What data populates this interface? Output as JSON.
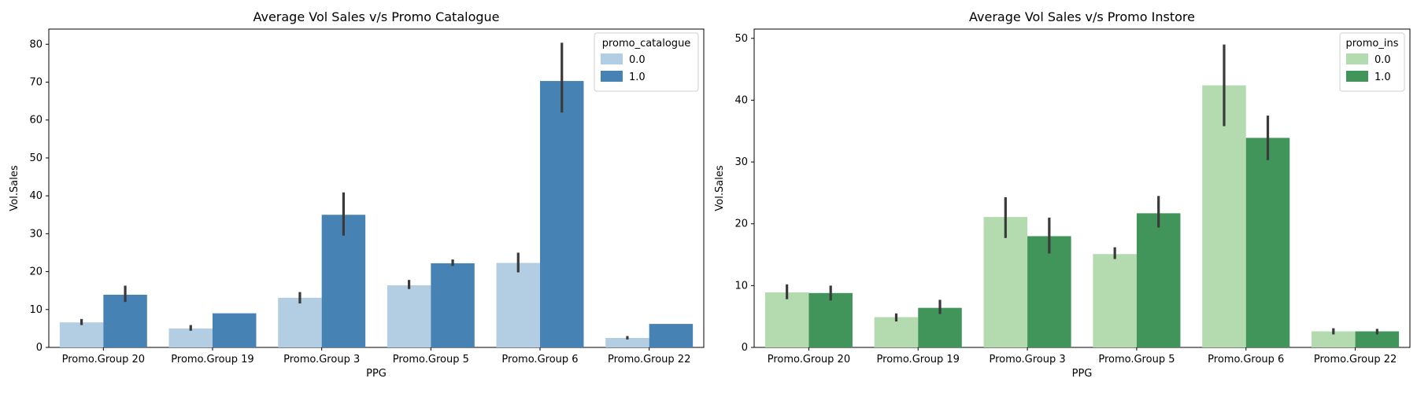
{
  "chart_data": [
    {
      "type": "bar",
      "title": "Average Vol Sales v/s Promo Catalogue",
      "xlabel": "PPG",
      "ylabel": "Vol.Sales",
      "ylim": [
        0,
        84
      ],
      "yticks": [
        0,
        10,
        20,
        30,
        40,
        50,
        60,
        70,
        80
      ],
      "categories": [
        "Promo.Group 20",
        "Promo.Group 19",
        "Promo.Group 3",
        "Promo.Group 5",
        "Promo.Group 6",
        "Promo.Group 22"
      ],
      "legend": {
        "title": "promo_catalogue",
        "placement": "top-right"
      },
      "series": [
        {
          "name": "0.0",
          "color": "#b3cee3",
          "values": [
            6.6,
            5.0,
            13.1,
            16.4,
            22.3,
            2.5
          ],
          "error": [
            [
              5.9,
              7.5
            ],
            [
              4.4,
              5.9
            ],
            [
              11.6,
              14.6
            ],
            [
              15.4,
              17.8
            ],
            [
              19.8,
              25.0
            ],
            [
              2.1,
              3.0
            ]
          ]
        },
        {
          "name": "1.0",
          "color": "#4682b4",
          "values": [
            13.9,
            9.0,
            35.0,
            22.2,
            70.3,
            6.2
          ],
          "error": [
            [
              12.0,
              16.3
            ],
            null,
            [
              29.5,
              40.9
            ],
            [
              21.5,
              23.2
            ],
            [
              62.0,
              80.4
            ],
            null
          ]
        }
      ]
    },
    {
      "type": "bar",
      "title": "Average Vol Sales v/s Promo Instore",
      "xlabel": "PPG",
      "ylabel": "Vol.Sales",
      "ylim": [
        0,
        51.5
      ],
      "yticks": [
        0,
        10,
        20,
        30,
        40,
        50
      ],
      "categories": [
        "Promo.Group 20",
        "Promo.Group 19",
        "Promo.Group 3",
        "Promo.Group 5",
        "Promo.Group 6",
        "Promo.Group 22"
      ],
      "legend": {
        "title": "promo_ins",
        "placement": "top-right"
      },
      "series": [
        {
          "name": "0.0",
          "color": "#b4dbb0",
          "values": [
            8.9,
            4.9,
            21.1,
            15.1,
            42.4,
            2.6
          ],
          "error": [
            [
              7.8,
              10.2
            ],
            [
              4.2,
              5.5
            ],
            [
              17.7,
              24.3
            ],
            [
              14.3,
              16.2
            ],
            [
              35.8,
              49.0
            ],
            [
              2.1,
              3.1
            ]
          ]
        },
        {
          "name": "1.0",
          "color": "#41955b",
          "values": [
            8.8,
            6.4,
            18.0,
            21.7,
            33.9,
            2.6
          ],
          "error": [
            [
              7.6,
              10.0
            ],
            [
              5.4,
              7.7
            ],
            [
              15.2,
              21.0
            ],
            [
              19.4,
              24.5
            ],
            [
              30.3,
              37.5
            ],
            [
              2.1,
              3.0
            ]
          ]
        }
      ]
    }
  ]
}
